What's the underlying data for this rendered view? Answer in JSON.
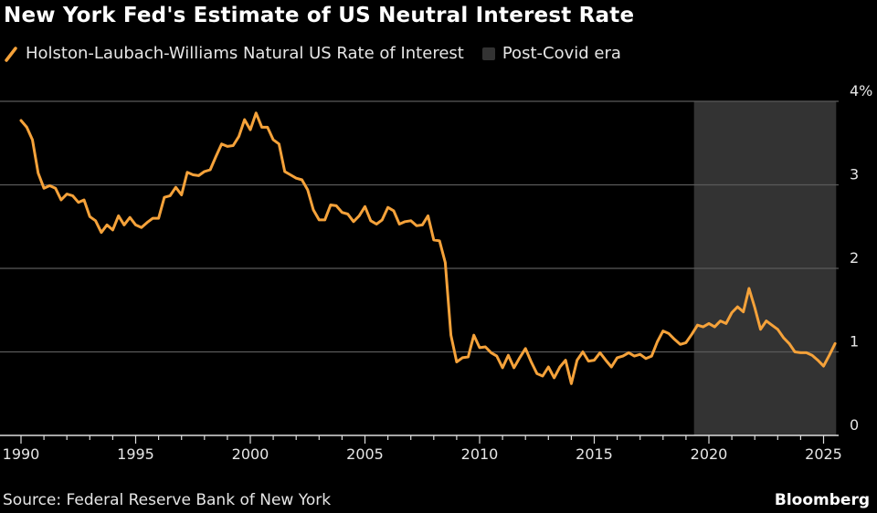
{
  "chart_data": {
    "type": "line",
    "title": "New York Fed's Estimate of US Neutral Interest Rate",
    "ylabel": "",
    "xlabel": "",
    "ylim": [
      0,
      4
    ],
    "xlim": [
      1989.9,
      2025.9
    ],
    "y_ticks": [
      0,
      1,
      2,
      3,
      4
    ],
    "y_tick_labels": [
      "0",
      "1",
      "2",
      "3",
      "4%"
    ],
    "x_ticks": [
      1990,
      1995,
      2000,
      2005,
      2010,
      2015,
      2020,
      2025
    ],
    "x_tick_labels": [
      "1990",
      "1995",
      "2000",
      "2005",
      "2010",
      "2015",
      "2020",
      "2025"
    ],
    "grid": true,
    "legend_position": "top-left",
    "shaded_region": {
      "name": "Post-Covid era",
      "x_range": [
        2019.35,
        2025.55
      ],
      "color": "#333333"
    },
    "series": [
      {
        "name": "Holston-Laubach-Williams Natural US Rate of Interest",
        "color": "#f5a23a",
        "x": [
          1990,
          1990.25,
          1990.5,
          1990.75,
          1991,
          1991.25,
          1991.5,
          1991.75,
          1992,
          1992.25,
          1992.5,
          1992.75,
          1993,
          1993.25,
          1993.5,
          1993.75,
          1994,
          1994.25,
          1994.5,
          1994.75,
          1995,
          1995.25,
          1995.5,
          1995.75,
          1996,
          1996.25,
          1996.5,
          1996.75,
          1997,
          1997.25,
          1997.5,
          1997.75,
          1998,
          1998.25,
          1998.5,
          1998.75,
          1999,
          1999.25,
          1999.5,
          1999.75,
          2000,
          2000.25,
          2000.5,
          2000.75,
          2001,
          2001.25,
          2001.5,
          2001.75,
          2002,
          2002.25,
          2002.5,
          2002.75,
          2003,
          2003.25,
          2003.5,
          2003.75,
          2004,
          2004.25,
          2004.5,
          2004.75,
          2005,
          2005.25,
          2005.5,
          2005.75,
          2006,
          2006.25,
          2006.5,
          2006.75,
          2007,
          2007.25,
          2007.5,
          2007.75,
          2008,
          2008.25,
          2008.5,
          2008.75,
          2009,
          2009.25,
          2009.5,
          2009.75,
          2010,
          2010.25,
          2010.5,
          2010.75,
          2011,
          2011.25,
          2011.5,
          2011.75,
          2012,
          2012.25,
          2012.5,
          2012.75,
          2013,
          2013.25,
          2013.5,
          2013.75,
          2014,
          2014.25,
          2014.5,
          2014.75,
          2015,
          2015.25,
          2015.5,
          2015.75,
          2016,
          2016.25,
          2016.5,
          2016.75,
          2017,
          2017.25,
          2017.5,
          2017.75,
          2018,
          2018.25,
          2018.5,
          2018.75,
          2019,
          2019.25,
          2019.5,
          2019.75,
          2020,
          2020.25,
          2020.5,
          2020.75,
          2021,
          2021.25,
          2021.5,
          2021.75,
          2022,
          2022.25,
          2022.5,
          2022.75,
          2023,
          2023.25,
          2023.5,
          2023.75,
          2024,
          2024.25,
          2024.5,
          2024.75,
          2025,
          2025.25,
          2025.5
        ],
        "values": [
          3.77,
          3.69,
          3.54,
          3.14,
          2.96,
          2.99,
          2.96,
          2.82,
          2.89,
          2.87,
          2.79,
          2.82,
          2.62,
          2.57,
          2.43,
          2.52,
          2.46,
          2.63,
          2.52,
          2.61,
          2.52,
          2.49,
          2.55,
          2.6,
          2.6,
          2.85,
          2.87,
          2.97,
          2.88,
          3.15,
          3.12,
          3.11,
          3.16,
          3.18,
          3.34,
          3.49,
          3.46,
          3.47,
          3.58,
          3.78,
          3.66,
          3.86,
          3.69,
          3.69,
          3.54,
          3.49,
          3.16,
          3.12,
          3.08,
          3.06,
          2.94,
          2.7,
          2.58,
          2.58,
          2.76,
          2.75,
          2.67,
          2.65,
          2.56,
          2.63,
          2.74,
          2.57,
          2.53,
          2.58,
          2.73,
          2.69,
          2.53,
          2.56,
          2.57,
          2.51,
          2.52,
          2.63,
          2.34,
          2.33,
          2.07,
          1.2,
          0.88,
          0.93,
          0.94,
          1.2,
          1.05,
          1.06,
          0.99,
          0.95,
          0.81,
          0.96,
          0.81,
          0.93,
          1.04,
          0.88,
          0.74,
          0.71,
          0.82,
          0.69,
          0.82,
          0.9,
          0.62,
          0.9,
          1.0,
          0.89,
          0.9,
          0.99,
          0.9,
          0.82,
          0.93,
          0.95,
          0.99,
          0.95,
          0.97,
          0.92,
          0.95,
          1.12,
          1.25,
          1.22,
          1.15,
          1.09,
          1.11,
          1.21,
          1.32,
          1.3,
          1.34,
          1.3,
          1.37,
          1.34,
          1.47,
          1.54,
          1.48,
          1.76,
          1.53,
          1.27,
          1.37,
          1.32,
          1.27,
          1.17,
          1.1,
          1.0,
          0.99,
          0.99,
          0.96,
          0.9,
          0.83,
          0.96,
          1.1
        ]
      }
    ]
  },
  "legend": {
    "series_label": "Holston-Laubach-Williams Natural US Rate of Interest",
    "shade_label": "Post-Covid era"
  },
  "footer": {
    "source": "Source: Federal Reserve Bank of New York",
    "brand": "Bloomberg"
  }
}
